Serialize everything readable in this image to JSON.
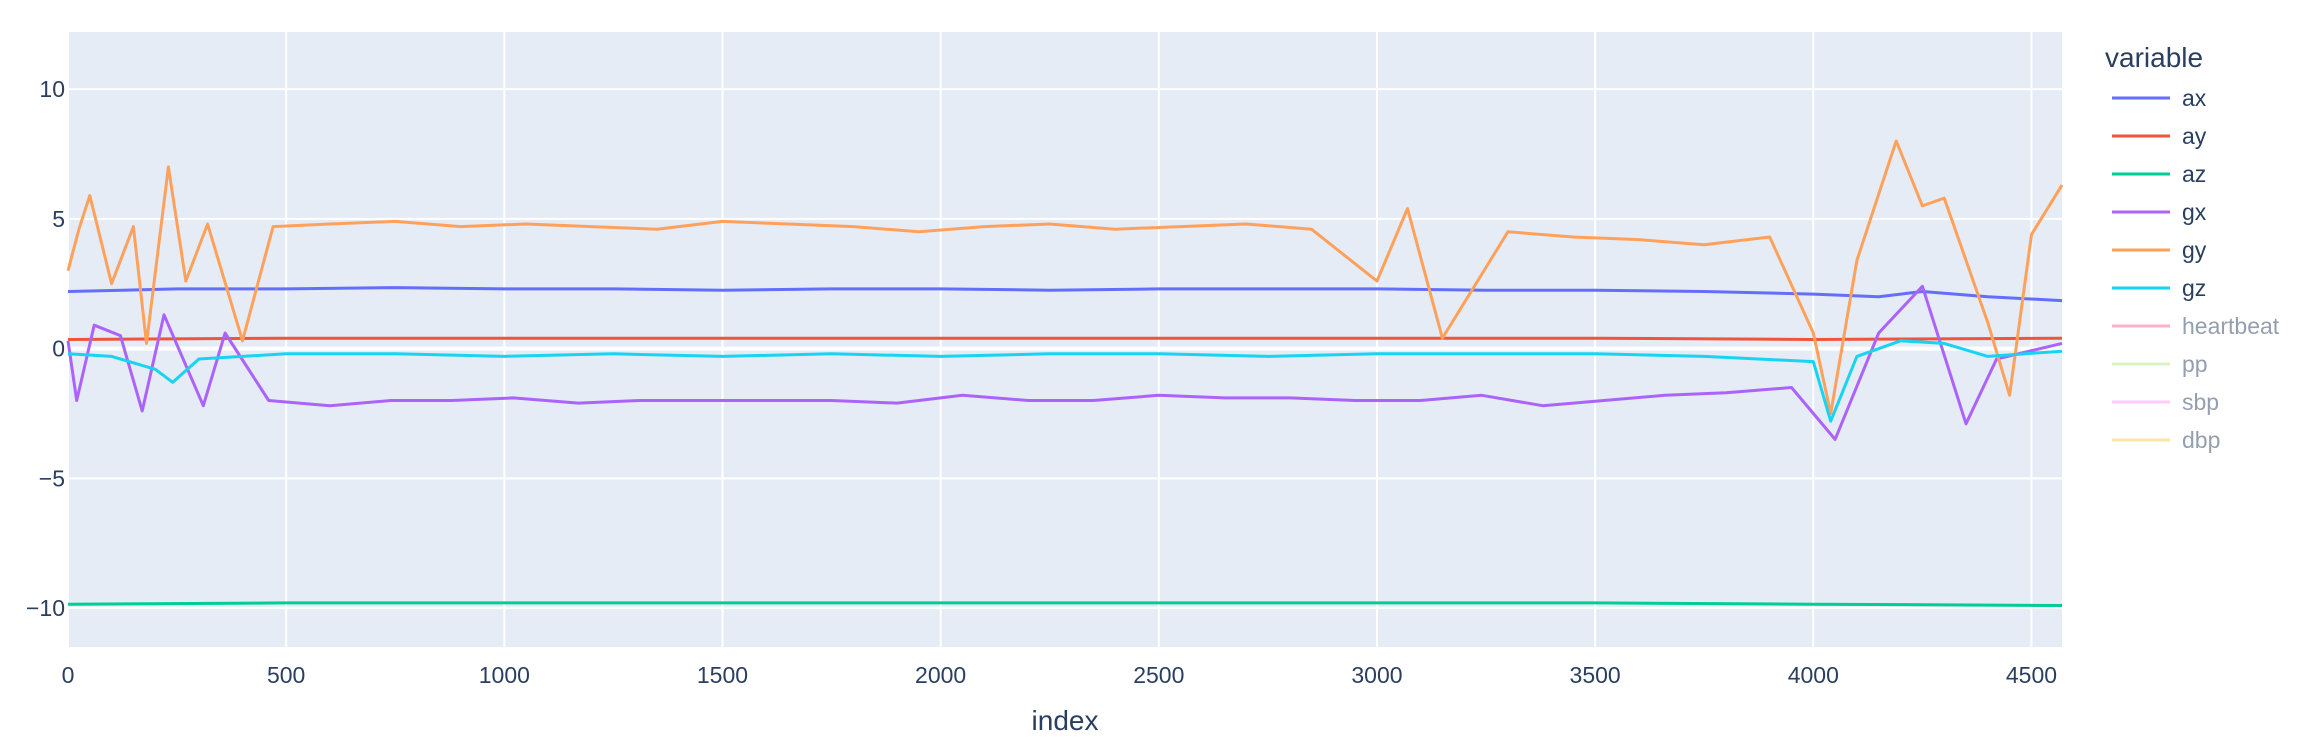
{
  "chart_data": {
    "type": "line",
    "xlabel": "index",
    "ylabel": "",
    "xlim": [
      0,
      4570
    ],
    "ylim": [
      -11.5,
      12.2
    ],
    "xticks": [
      0,
      500,
      1000,
      1500,
      2000,
      2500,
      3000,
      3500,
      4000,
      4500
    ],
    "xtick_labels": [
      "0",
      "500",
      "1000",
      "1500",
      "2000",
      "2500",
      "3000",
      "3500",
      "4000",
      "4500"
    ],
    "yticks": [
      -10,
      -5,
      0,
      5,
      10
    ],
    "ytick_labels": [
      "−10",
      "−5",
      "0",
      "5",
      "10"
    ],
    "grid": true,
    "legend_title": "variable",
    "legend_position": "right",
    "series": [
      {
        "name": "ax",
        "color": "#636efa",
        "visible": true,
        "x": [
          0,
          250,
          500,
          750,
          1000,
          1250,
          1500,
          1750,
          2000,
          2250,
          2500,
          2750,
          3000,
          3250,
          3500,
          3750,
          4000,
          4150,
          4250,
          4400,
          4570
        ],
        "y": [
          2.2,
          2.3,
          2.3,
          2.35,
          2.3,
          2.3,
          2.25,
          2.3,
          2.3,
          2.25,
          2.3,
          2.3,
          2.3,
          2.25,
          2.25,
          2.2,
          2.1,
          2.0,
          2.2,
          2.0,
          1.85
        ]
      },
      {
        "name": "ay",
        "color": "#ef553b",
        "visible": true,
        "x": [
          0,
          500,
          1000,
          1500,
          2000,
          2500,
          3000,
          3500,
          4000,
          4570
        ],
        "y": [
          0.35,
          0.4,
          0.4,
          0.4,
          0.4,
          0.4,
          0.4,
          0.4,
          0.35,
          0.4
        ]
      },
      {
        "name": "az",
        "color": "#00cc96",
        "visible": true,
        "x": [
          0,
          500,
          1000,
          1500,
          2000,
          2500,
          3000,
          3500,
          4000,
          4570
        ],
        "y": [
          -9.85,
          -9.8,
          -9.8,
          -9.8,
          -9.8,
          -9.8,
          -9.8,
          -9.8,
          -9.85,
          -9.9
        ]
      },
      {
        "name": "gx",
        "color": "#ab63fa",
        "visible": true,
        "x": [
          0,
          20,
          60,
          120,
          170,
          220,
          310,
          360,
          460,
          600,
          740,
          880,
          1020,
          1170,
          1310,
          1460,
          1600,
          1750,
          1900,
          2050,
          2200,
          2350,
          2500,
          2650,
          2800,
          2950,
          3100,
          3240,
          3380,
          3520,
          3660,
          3800,
          3950,
          4050,
          4150,
          4250,
          4350,
          4420,
          4570
        ],
        "y": [
          0.3,
          -2.0,
          0.9,
          0.5,
          -2.4,
          1.3,
          -2.2,
          0.6,
          -2.0,
          -2.2,
          -2.0,
          -2.0,
          -1.9,
          -2.1,
          -2.0,
          -2.0,
          -2.0,
          -2.0,
          -2.1,
          -1.8,
          -2.0,
          -2.0,
          -1.8,
          -1.9,
          -1.9,
          -2.0,
          -2.0,
          -1.8,
          -2.2,
          -2.0,
          -1.8,
          -1.7,
          -1.5,
          -3.5,
          0.6,
          2.4,
          -2.9,
          -0.4,
          0.2
        ]
      },
      {
        "name": "gy",
        "color": "#ffa15a",
        "visible": true,
        "x": [
          0,
          25,
          50,
          100,
          150,
          180,
          230,
          270,
          320,
          400,
          470,
          600,
          750,
          900,
          1050,
          1200,
          1350,
          1500,
          1650,
          1800,
          1950,
          2100,
          2250,
          2400,
          2550,
          2700,
          2850,
          3000,
          3070,
          3150,
          3300,
          3450,
          3600,
          3750,
          3900,
          4000,
          4040,
          4100,
          4190,
          4250,
          4300,
          4400,
          4450,
          4500,
          4570
        ],
        "y": [
          3.0,
          4.6,
          5.9,
          2.5,
          4.7,
          0.2,
          7.0,
          2.6,
          4.8,
          0.3,
          4.7,
          4.8,
          4.9,
          4.7,
          4.8,
          4.7,
          4.6,
          4.9,
          4.8,
          4.7,
          4.5,
          4.7,
          4.8,
          4.6,
          4.7,
          4.8,
          4.6,
          2.6,
          5.4,
          0.4,
          4.5,
          4.3,
          4.2,
          4.0,
          4.3,
          0.6,
          -2.5,
          3.4,
          8.0,
          5.5,
          5.8,
          1.0,
          -1.8,
          4.4,
          6.3
        ]
      },
      {
        "name": "gz",
        "color": "#19d3f3",
        "visible": true,
        "x": [
          0,
          100,
          200,
          240,
          300,
          500,
          750,
          1000,
          1250,
          1500,
          1750,
          2000,
          2250,
          2500,
          2750,
          3000,
          3250,
          3500,
          3750,
          4000,
          4040,
          4100,
          4200,
          4300,
          4400,
          4570
        ],
        "y": [
          -0.2,
          -0.3,
          -0.8,
          -1.3,
          -0.4,
          -0.2,
          -0.2,
          -0.3,
          -0.2,
          -0.3,
          -0.2,
          -0.3,
          -0.2,
          -0.2,
          -0.3,
          -0.2,
          -0.2,
          -0.2,
          -0.3,
          -0.5,
          -2.8,
          -0.3,
          0.3,
          0.2,
          -0.3,
          -0.1
        ]
      },
      {
        "name": "heartbeat",
        "color": "#ff6692",
        "visible": false,
        "x": [],
        "y": []
      },
      {
        "name": "pp",
        "color": "#b6e880",
        "visible": false,
        "x": [],
        "y": []
      },
      {
        "name": "sbp",
        "color": "#ff97ff",
        "visible": false,
        "x": [],
        "y": []
      },
      {
        "name": "dbp",
        "color": "#fecb52",
        "visible": false,
        "x": [],
        "y": []
      }
    ]
  }
}
